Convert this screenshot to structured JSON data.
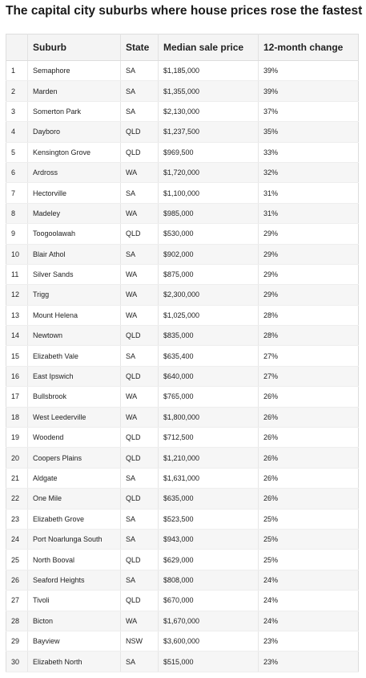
{
  "title": "The capital city suburbs where house prices rose the fastest",
  "table": {
    "header": [
      "",
      "Suburb",
      "State",
      "Median sale price",
      "12-month change"
    ],
    "rows": [
      [
        "1",
        "Semaphore",
        "SA",
        "$1,185,000",
        "39%"
      ],
      [
        "2",
        "Marden",
        "SA",
        "$1,355,000",
        "39%"
      ],
      [
        "3",
        "Somerton Park",
        "SA",
        "$2,130,000",
        "37%"
      ],
      [
        "4",
        "Dayboro",
        "QLD",
        "$1,237,500",
        "35%"
      ],
      [
        "5",
        "Kensington Grove",
        "QLD",
        "$969,500",
        "33%"
      ],
      [
        "6",
        "Ardross",
        "WA",
        "$1,720,000",
        "32%"
      ],
      [
        "7",
        "Hectorville",
        "SA",
        "$1,100,000",
        "31%"
      ],
      [
        "8",
        "Madeley",
        "WA",
        "$985,000",
        "31%"
      ],
      [
        "9",
        "Toogoolawah",
        "QLD",
        "$530,000",
        "29%"
      ],
      [
        "10",
        "Blair Athol",
        "SA",
        "$902,000",
        "29%"
      ],
      [
        "11",
        "Silver Sands",
        "WA",
        "$875,000",
        "29%"
      ],
      [
        "12",
        "Trigg",
        "WA",
        "$2,300,000",
        "29%"
      ],
      [
        "13",
        "Mount Helena",
        "WA",
        "$1,025,000",
        "28%"
      ],
      [
        "14",
        "Newtown",
        "QLD",
        "$835,000",
        "28%"
      ],
      [
        "15",
        "Elizabeth Vale",
        "SA",
        "$635,400",
        "27%"
      ],
      [
        "16",
        "East Ipswich",
        "QLD",
        "$640,000",
        "27%"
      ],
      [
        "17",
        "Bullsbrook",
        "WA",
        "$765,000",
        "26%"
      ],
      [
        "18",
        "West Leederville",
        "WA",
        "$1,800,000",
        "26%"
      ],
      [
        "19",
        "Woodend",
        "QLD",
        "$712,500",
        "26%"
      ],
      [
        "20",
        "Coopers Plains",
        "QLD",
        "$1,210,000",
        "26%"
      ],
      [
        "21",
        "Aldgate",
        "SA",
        "$1,631,000",
        "26%"
      ],
      [
        "22",
        "One Mile",
        "QLD",
        "$635,000",
        "26%"
      ],
      [
        "23",
        "Elizabeth Grove",
        "SA",
        "$523,500",
        "25%"
      ],
      [
        "24",
        "Port Noarlunga South",
        "SA",
        "$943,000",
        "25%"
      ],
      [
        "25",
        "North Booval",
        "QLD",
        "$629,000",
        "25%"
      ],
      [
        "26",
        "Seaford Heights",
        "SA",
        "$808,000",
        "24%"
      ],
      [
        "27",
        "Tivoli",
        "QLD",
        "$670,000",
        "24%"
      ],
      [
        "28",
        "Bicton",
        "WA",
        "$1,670,000",
        "24%"
      ],
      [
        "29",
        "Bayview",
        "NSW",
        "$3,600,000",
        "23%"
      ],
      [
        "30",
        "Elizabeth North",
        "SA",
        "$515,000",
        "23%"
      ]
    ]
  }
}
